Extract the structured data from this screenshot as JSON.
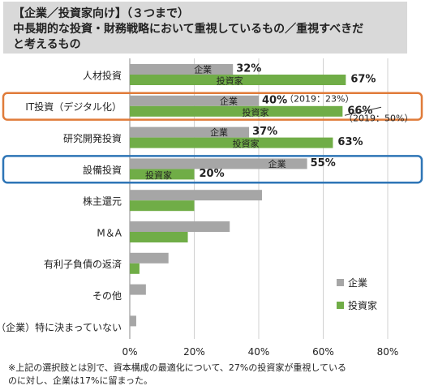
{
  "title": {
    "lines": [
      "【企業／投資家向け】（３つまで）",
      "中長期的な投資・財務戦略において重視しているもの／重視すべきだ",
      "と考えるもの"
    ]
  },
  "chart_data": {
    "type": "bar",
    "orientation": "horizontal",
    "categories": [
      "人材投資",
      "IT投資（デジタル化）",
      "研究開発投資",
      "設備投資",
      "株主還元",
      "M＆A",
      "有利子負債の返済",
      "その他",
      "（企業）特に決まっていない"
    ],
    "series": [
      {
        "name": "企業",
        "color": "#a6a6a6",
        "values": [
          32,
          40,
          37,
          55,
          41,
          31,
          12,
          5,
          2
        ]
      },
      {
        "name": "投資家",
        "color": "#70ad47",
        "values": [
          67,
          66,
          63,
          20,
          20,
          18,
          3,
          null,
          null
        ]
      }
    ],
    "xlim": [
      0,
      80
    ],
    "xticks": [
      "0%",
      "20%",
      "40%",
      "60%",
      "80%"
    ],
    "grid": true,
    "legend": {
      "position": "bottom-right",
      "entries": [
        "企業",
        "投資家"
      ]
    },
    "annotations": [
      {
        "category_index": 0,
        "corp_value": "32%",
        "corp_label": "企業",
        "inv_value": "67%",
        "inv_label": "投資家"
      },
      {
        "category_index": 1,
        "corp_value": "40%",
        "corp_label": "企業",
        "inv_value": "66%",
        "inv_label": "投資家",
        "corp_note": "（2019：23%）",
        "inv_note": "（2019：50%）"
      },
      {
        "category_index": 2,
        "corp_value": "37%",
        "corp_label": "企業",
        "inv_value": "63%",
        "inv_label": "投資家"
      },
      {
        "category_index": 3,
        "corp_value": "55%",
        "corp_label": "企業",
        "inv_value": "20%",
        "inv_label": "投資家"
      }
    ],
    "highlights": [
      {
        "category_index": 1,
        "color": "#e07b39"
      },
      {
        "category_index": 3,
        "color": "#2e75b6"
      }
    ]
  },
  "footnote": {
    "lines": [
      "※上記の選択肢とは別で、資本構成の最適化について、27%の投資家が重視している",
      "のに対し、企業は17%に留まった。"
    ]
  }
}
